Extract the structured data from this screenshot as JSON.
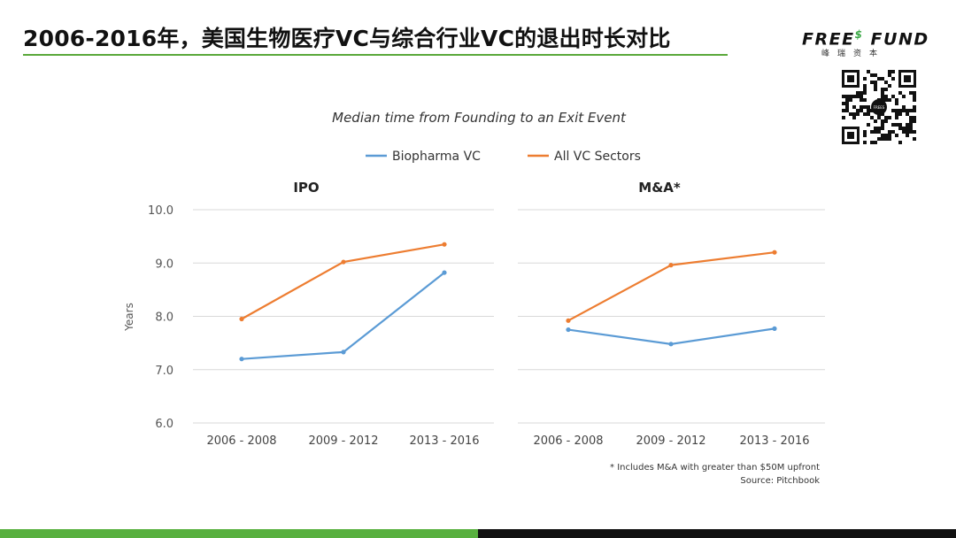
{
  "slide": {
    "title": "2006-2016年，美国生物医疗VC与综合行业VC的退出时长对比"
  },
  "logo": {
    "name_part1": "FREE",
    "name_sup": "$",
    "name_part2": " FUND",
    "subtitle": "峰瑞资本",
    "qr_center_label": "FREES"
  },
  "colors": {
    "biopharma": "#5b9bd5",
    "all_vc": "#ed7d31",
    "accent_green": "#58b03f"
  },
  "chart_data": {
    "type": "line",
    "title": "Median time from Founding to an Exit Event",
    "ylabel": "Years",
    "ylim": [
      6.0,
      10.0
    ],
    "yticks": [
      6.0,
      7.0,
      8.0,
      9.0,
      10.0
    ],
    "grid": true,
    "legend_placement": "top-center",
    "categories": [
      "2006 - 2008",
      "2009 - 2012",
      "2013 - 2016"
    ],
    "panels": [
      {
        "title": "IPO",
        "series": [
          {
            "name": "Biopharma VC",
            "values": [
              7.2,
              7.33,
              8.82
            ]
          },
          {
            "name": "All VC Sectors",
            "values": [
              7.95,
              9.02,
              9.35
            ]
          }
        ]
      },
      {
        "title": "M&A*",
        "series": [
          {
            "name": "Biopharma VC",
            "values": [
              7.75,
              7.48,
              7.77
            ]
          },
          {
            "name": "All VC Sectors",
            "values": [
              7.92,
              8.96,
              9.2
            ]
          }
        ]
      }
    ],
    "footnote": "* Includes M&A with greater than $50M upfront",
    "source": "Source: Pitchbook"
  }
}
